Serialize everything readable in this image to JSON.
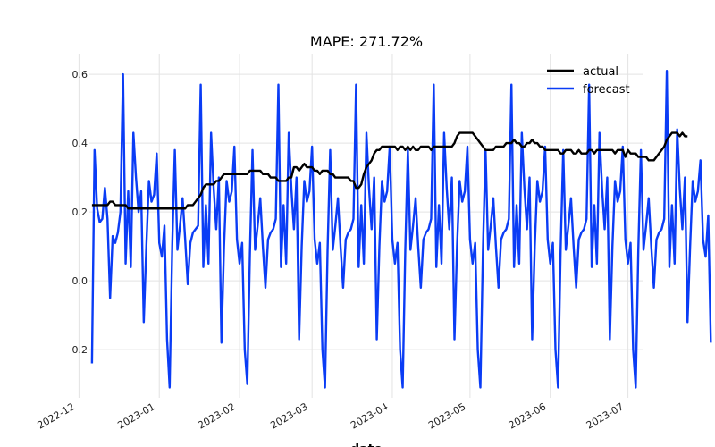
{
  "chart_data": {
    "type": "line",
    "title": "MAPE: 271.72%",
    "xlabel": "date",
    "ylabel": "",
    "x_range": [
      "2022-12-05",
      "2023-07-07"
    ],
    "ylim": [
      -0.34,
      0.66
    ],
    "x_ticks": [
      "2022-12",
      "2023-01",
      "2023-02",
      "2023-03",
      "2023-04",
      "2023-05",
      "2023-06",
      "2023-07"
    ],
    "x_tick_dates": [
      "2022-12-01",
      "2023-01-01",
      "2023-02-01",
      "2023-03-01",
      "2023-04-01",
      "2023-05-01",
      "2023-06-01",
      "2023-07-01"
    ],
    "y_ticks": [
      0.6,
      0.4,
      0.2,
      0.0,
      -0.2
    ],
    "y_tick_labels": [
      "0.6",
      "0.4",
      "0.2",
      "0.0",
      "−0.2"
    ],
    "grid": true,
    "legend_position": "top-right",
    "x_start": "2022-12-06",
    "series": [
      {
        "name": "actual",
        "color": "#000000",
        "values": [
          0.22,
          0.22,
          0.22,
          0.22,
          0.22,
          0.22,
          0.22,
          0.23,
          0.23,
          0.22,
          0.22,
          0.22,
          0.22,
          0.22,
          0.21,
          0.21,
          0.21,
          0.21,
          0.21,
          0.21,
          0.21,
          0.21,
          0.21,
          0.21,
          0.21,
          0.21,
          0.21,
          0.21,
          0.21,
          0.21,
          0.21,
          0.21,
          0.21,
          0.21,
          0.21,
          0.21,
          0.21,
          0.22,
          0.22,
          0.22,
          0.23,
          0.24,
          0.25,
          0.27,
          0.28,
          0.28,
          0.28,
          0.28,
          0.29,
          0.29,
          0.3,
          0.31,
          0.31,
          0.31,
          0.31,
          0.31,
          0.31,
          0.31,
          0.31,
          0.31,
          0.31,
          0.32,
          0.32,
          0.32,
          0.32,
          0.32,
          0.31,
          0.31,
          0.31,
          0.3,
          0.3,
          0.3,
          0.29,
          0.29,
          0.29,
          0.29,
          0.3,
          0.3,
          0.33,
          0.33,
          0.32,
          0.33,
          0.34,
          0.33,
          0.33,
          0.33,
          0.32,
          0.32,
          0.31,
          0.32,
          0.32,
          0.32,
          0.31,
          0.31,
          0.3,
          0.3,
          0.3,
          0.3,
          0.3,
          0.3,
          0.29,
          0.29,
          0.27,
          0.27,
          0.28,
          0.31,
          0.33,
          0.34,
          0.35,
          0.37,
          0.38,
          0.38,
          0.39,
          0.39,
          0.39,
          0.39,
          0.39,
          0.39,
          0.38,
          0.39,
          0.39,
          0.38,
          0.39,
          0.38,
          0.39,
          0.38,
          0.38,
          0.39,
          0.39,
          0.39,
          0.39,
          0.38,
          0.39,
          0.39,
          0.39,
          0.39,
          0.39,
          0.39,
          0.39,
          0.39,
          0.4,
          0.42,
          0.43,
          0.43,
          0.43,
          0.43,
          0.43,
          0.43,
          0.42,
          0.41,
          0.4,
          0.39,
          0.38,
          0.38,
          0.38,
          0.38,
          0.39,
          0.39,
          0.39,
          0.39,
          0.4,
          0.4,
          0.4,
          0.41,
          0.4,
          0.4,
          0.39,
          0.39,
          0.4,
          0.4,
          0.41,
          0.4,
          0.4,
          0.39,
          0.39,
          0.38,
          0.38,
          0.38,
          0.38,
          0.38,
          0.38,
          0.37,
          0.37,
          0.38,
          0.38,
          0.38,
          0.37,
          0.37,
          0.38,
          0.37,
          0.37,
          0.37,
          0.38,
          0.38,
          0.37,
          0.38,
          0.38,
          0.38,
          0.38,
          0.38,
          0.38,
          0.38,
          0.37,
          0.38,
          0.38,
          0.38,
          0.36,
          0.38,
          0.37,
          0.37,
          0.37,
          0.36,
          0.36,
          0.36,
          0.36,
          0.35,
          0.35,
          0.35,
          0.36,
          0.37,
          0.38,
          0.39,
          0.41,
          0.42,
          0.43,
          0.43,
          0.43,
          0.42,
          0.43,
          0.42,
          0.42
        ],
        "x_start": "2022-12-06"
      },
      {
        "name": "forecast",
        "color": "#0a3cf5",
        "values": [
          -0.24,
          0.38,
          0.21,
          0.17,
          0.18,
          0.27,
          0.18,
          -0.05,
          0.13,
          0.11,
          0.14,
          0.2,
          0.6,
          0.05,
          0.26,
          0.04,
          0.43,
          0.3,
          0.2,
          0.26,
          -0.12,
          0.1,
          0.29,
          0.23,
          0.25,
          0.37,
          0.11,
          0.07,
          0.16,
          -0.17,
          -0.31,
          0.1,
          0.38,
          0.09,
          0.16,
          0.24,
          0.12,
          -0.01,
          0.11,
          0.14,
          0.15,
          0.16,
          0.57,
          0.04,
          0.22,
          0.05,
          0.43,
          0.27,
          0.15,
          0.3,
          -0.18,
          0.1,
          0.29,
          0.23,
          0.26,
          0.39,
          0.12,
          0.05,
          0.11,
          -0.2,
          -0.3,
          0.08,
          0.38,
          0.09,
          0.16,
          0.24,
          0.1,
          -0.02,
          0.12,
          0.14,
          0.15,
          0.18,
          0.57,
          0.04,
          0.22,
          0.05,
          0.43,
          0.27,
          0.15,
          0.3,
          -0.17,
          0.1,
          0.29,
          0.23,
          0.26,
          0.39,
          0.12,
          0.05,
          0.11,
          -0.2,
          -0.31,
          0.09,
          0.38,
          0.09,
          0.16,
          0.24,
          0.1,
          -0.02,
          0.12,
          0.14,
          0.15,
          0.18,
          0.57,
          0.04,
          0.22,
          0.05,
          0.43,
          0.27,
          0.15,
          0.3,
          -0.17,
          0.1,
          0.29,
          0.23,
          0.26,
          0.39,
          0.12,
          0.05,
          0.11,
          -0.2,
          -0.31,
          0.09,
          0.38,
          0.09,
          0.16,
          0.24,
          0.1,
          -0.02,
          0.12,
          0.14,
          0.15,
          0.18,
          0.57,
          0.04,
          0.22,
          0.05,
          0.43,
          0.27,
          0.15,
          0.3,
          -0.17,
          0.1,
          0.29,
          0.23,
          0.26,
          0.39,
          0.12,
          0.05,
          0.11,
          -0.2,
          -0.31,
          0.09,
          0.38,
          0.09,
          0.16,
          0.24,
          0.1,
          -0.02,
          0.12,
          0.14,
          0.15,
          0.18,
          0.57,
          0.04,
          0.22,
          0.05,
          0.43,
          0.27,
          0.15,
          0.3,
          -0.17,
          0.1,
          0.29,
          0.23,
          0.26,
          0.39,
          0.12,
          0.05,
          0.11,
          -0.2,
          -0.31,
          0.09,
          0.38,
          0.09,
          0.16,
          0.24,
          0.1,
          -0.02,
          0.12,
          0.14,
          0.15,
          0.18,
          0.57,
          0.04,
          0.22,
          0.05,
          0.43,
          0.27,
          0.15,
          0.3,
          -0.17,
          0.1,
          0.29,
          0.23,
          0.26,
          0.39,
          0.12,
          0.05,
          0.11,
          -0.2,
          -0.31,
          0.09,
          0.38,
          0.09,
          0.16,
          0.24,
          0.1,
          -0.02,
          0.12,
          0.14,
          0.15,
          0.18,
          0.61,
          0.04,
          0.22,
          0.05,
          0.44,
          0.27,
          0.15,
          0.3,
          -0.12,
          0.1,
          0.29,
          0.23,
          0.26,
          0.35,
          0.12,
          0.07,
          0.19,
          -0.18
        ]
      }
    ]
  }
}
